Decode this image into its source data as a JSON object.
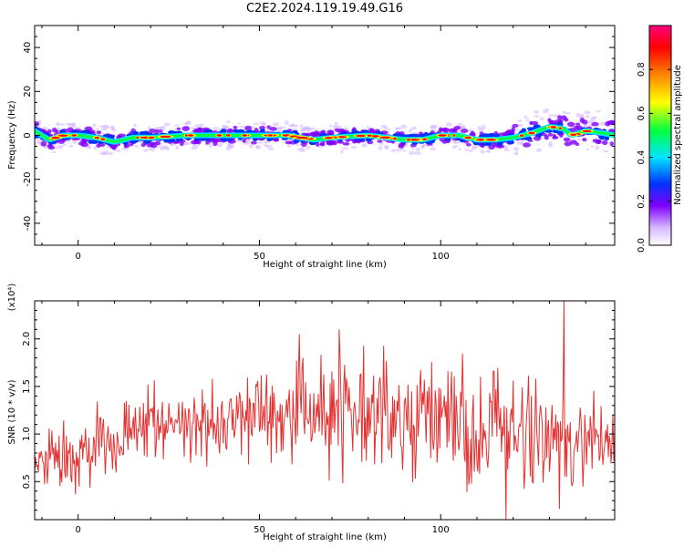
{
  "title": "C2E2.2024.119.19.49.G16",
  "colors": {
    "line": "#e53030",
    "axes": "#000000",
    "spec_background": "#ffffff",
    "colormap": [
      "#ffffff",
      "#d6b8ff",
      "#8000ff",
      "#0033ff",
      "#00e5ff",
      "#00ff40",
      "#ffff00",
      "#ff8000",
      "#ff0000",
      "#ff0080"
    ]
  },
  "chart_data": [
    {
      "type": "heatmap",
      "panel": "spectrogram",
      "xlabel": "Height of straight line (km)",
      "ylabel": "Frequency (Hz)",
      "xlim": [
        -12,
        148
      ],
      "ylim": [
        -50,
        50
      ],
      "x_ticks": [
        0,
        50,
        100
      ],
      "y_ticks": [
        -40,
        -20,
        0,
        20,
        40
      ],
      "ridge": {
        "x": [
          -12,
          -8,
          -4,
          0,
          5,
          10,
          15,
          20,
          30,
          40,
          50,
          58,
          65,
          70,
          80,
          85,
          90,
          95,
          100,
          105,
          110,
          115,
          120,
          125,
          130,
          134,
          136,
          140,
          145,
          148
        ],
        "freq": [
          2,
          -2,
          0,
          0,
          -1,
          -3,
          -1,
          -1,
          0,
          0,
          0,
          0,
          -2,
          -1,
          0,
          -1,
          -2,
          -2,
          0,
          0,
          -2,
          -2,
          -1,
          1,
          4,
          3,
          0,
          2,
          1,
          0
        ]
      },
      "colorbar": {
        "label": "Normalized spectral amplitude",
        "range": [
          0,
          1
        ],
        "ticks": [
          0.0,
          0.2,
          0.4,
          0.6,
          0.8
        ]
      }
    },
    {
      "type": "line",
      "panel": "snr",
      "xlabel": "Height of straight line (km)",
      "ylabel": "SNR (10 * v/v)",
      "scale_label": "(x10⁴)",
      "xlim": [
        -12,
        148
      ],
      "ylim": [
        0.1,
        2.4
      ],
      "x_ticks": [
        0,
        50,
        100
      ],
      "y_ticks": [
        0.5,
        1.0,
        1.5,
        2.0
      ],
      "envelope": {
        "x": [
          -12,
          -5,
          0,
          10,
          20,
          30,
          40,
          50,
          60,
          70,
          80,
          90,
          100,
          110,
          120,
          130,
          135,
          140,
          148
        ],
        "mean": [
          0.6,
          0.75,
          0.8,
          0.9,
          1.05,
          1.1,
          1.15,
          1.2,
          1.25,
          1.2,
          1.2,
          1.15,
          1.15,
          1.1,
          1.0,
          0.95,
          0.95,
          0.95,
          0.95
        ],
        "amplitude": [
          0.3,
          0.35,
          0.35,
          0.35,
          0.4,
          0.35,
          0.35,
          0.4,
          0.55,
          0.55,
          0.55,
          0.55,
          0.55,
          0.6,
          0.6,
          0.55,
          0.6,
          0.5,
          0.45
        ]
      },
      "peaks": [
        {
          "x": 134,
          "y": 2.4
        },
        {
          "x": 61,
          "y": 2.05
        },
        {
          "x": 72,
          "y": 2.1
        },
        {
          "x": 118,
          "y": 0.1
        }
      ]
    }
  ]
}
